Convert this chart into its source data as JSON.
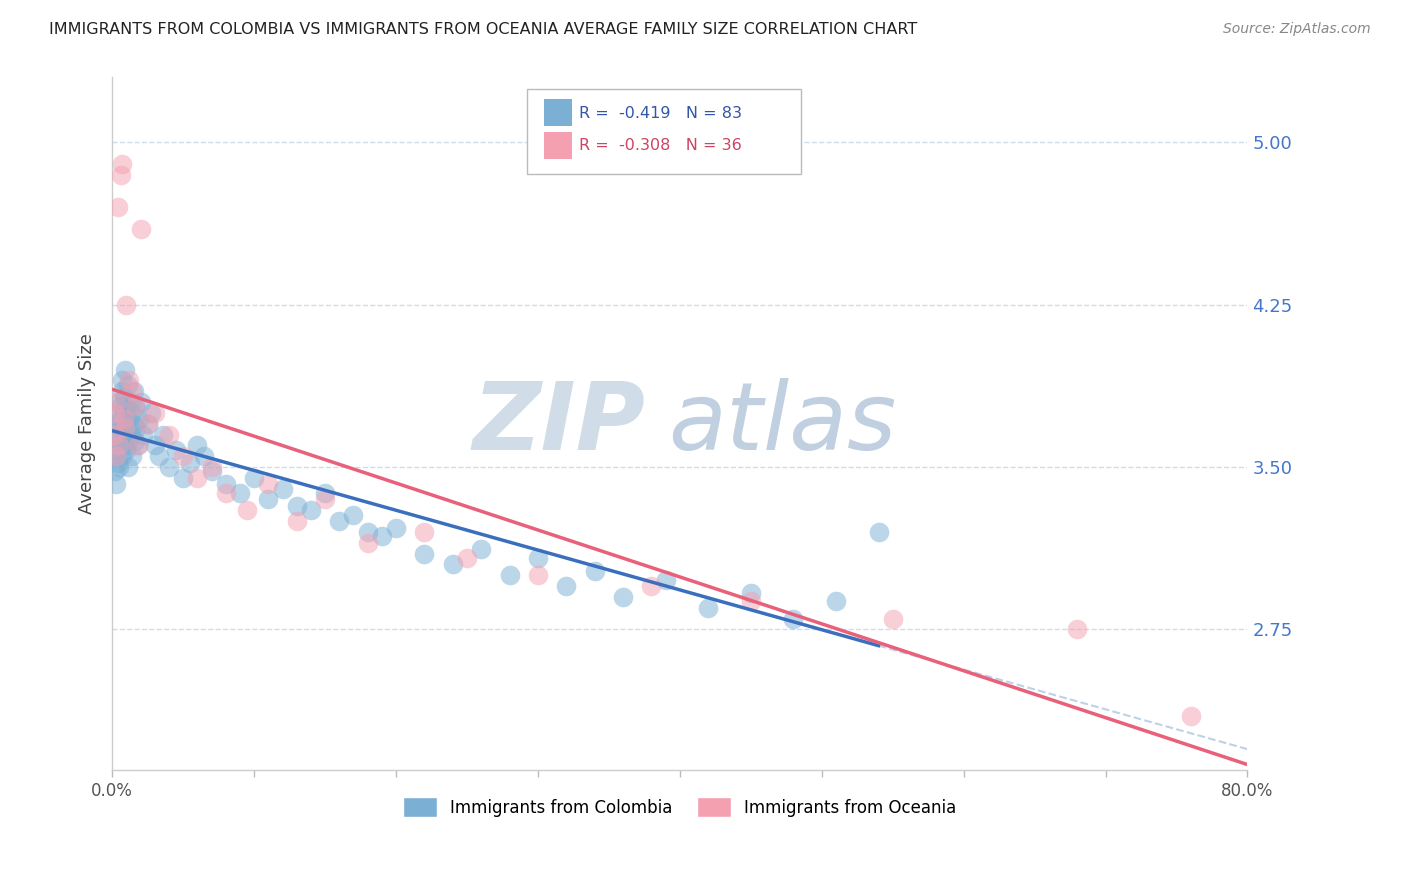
{
  "title": "IMMIGRANTS FROM COLOMBIA VS IMMIGRANTS FROM OCEANIA AVERAGE FAMILY SIZE CORRELATION CHART",
  "source": "Source: ZipAtlas.com",
  "ylabel": "Average Family Size",
  "xlim": [
    0.0,
    0.8
  ],
  "ylim": [
    2.1,
    5.3
  ],
  "yticks": [
    2.75,
    3.5,
    4.25,
    5.0
  ],
  "xticks": [
    0.0,
    0.1,
    0.2,
    0.3,
    0.4,
    0.5,
    0.6,
    0.7,
    0.8
  ],
  "xtick_labels": [
    "0.0%",
    "",
    "",
    "",
    "",
    "",
    "",
    "",
    "80.0%"
  ],
  "legend_label1": "Immigrants from Colombia",
  "legend_label2": "Immigrants from Oceania",
  "R1": -0.419,
  "N1": 83,
  "R2": -0.308,
  "N2": 36,
  "color1": "#7bafd4",
  "color2": "#f4a0b0",
  "trendline1_color": "#3a6fbe",
  "trendline2_color": "#e8607a",
  "trendline_ext_color": "#b8cce4",
  "watermark_zip_color": "#c5d5e8",
  "watermark_atlas_color": "#b8c8d8",
  "background_color": "#ffffff",
  "grid_color": "#ccddee",
  "colombia_x": [
    0.001,
    0.002,
    0.002,
    0.003,
    0.003,
    0.003,
    0.004,
    0.004,
    0.004,
    0.005,
    0.005,
    0.005,
    0.006,
    0.006,
    0.006,
    0.007,
    0.007,
    0.007,
    0.008,
    0.008,
    0.008,
    0.009,
    0.009,
    0.009,
    0.01,
    0.01,
    0.01,
    0.011,
    0.011,
    0.012,
    0.012,
    0.013,
    0.013,
    0.014,
    0.014,
    0.015,
    0.015,
    0.016,
    0.016,
    0.017,
    0.018,
    0.019,
    0.02,
    0.022,
    0.025,
    0.027,
    0.03,
    0.033,
    0.036,
    0.04,
    0.045,
    0.05,
    0.055,
    0.06,
    0.065,
    0.07,
    0.08,
    0.09,
    0.1,
    0.11,
    0.12,
    0.13,
    0.14,
    0.15,
    0.16,
    0.17,
    0.18,
    0.19,
    0.2,
    0.22,
    0.24,
    0.26,
    0.28,
    0.3,
    0.32,
    0.34,
    0.36,
    0.39,
    0.42,
    0.45,
    0.48,
    0.51,
    0.54
  ],
  "colombia_y": [
    3.55,
    3.62,
    3.48,
    3.7,
    3.58,
    3.42,
    3.75,
    3.65,
    3.52,
    3.8,
    3.6,
    3.5,
    3.68,
    3.72,
    3.78,
    3.85,
    3.55,
    3.9,
    3.65,
    3.75,
    3.82,
    3.6,
    3.7,
    3.95,
    3.58,
    3.68,
    3.78,
    3.88,
    3.5,
    3.72,
    3.62,
    3.8,
    3.65,
    3.75,
    3.55,
    3.85,
    3.7,
    3.62,
    3.78,
    3.68,
    3.6,
    3.72,
    3.8,
    3.65,
    3.7,
    3.75,
    3.6,
    3.55,
    3.65,
    3.5,
    3.58,
    3.45,
    3.52,
    3.6,
    3.55,
    3.48,
    3.42,
    3.38,
    3.45,
    3.35,
    3.4,
    3.32,
    3.3,
    3.38,
    3.25,
    3.28,
    3.2,
    3.18,
    3.22,
    3.1,
    3.05,
    3.12,
    3.0,
    3.08,
    2.95,
    3.02,
    2.9,
    2.98,
    2.85,
    2.92,
    2.8,
    2.88,
    3.2
  ],
  "oceania_x": [
    0.001,
    0.002,
    0.003,
    0.003,
    0.004,
    0.005,
    0.006,
    0.007,
    0.008,
    0.009,
    0.01,
    0.012,
    0.014,
    0.016,
    0.018,
    0.02,
    0.025,
    0.03,
    0.04,
    0.05,
    0.06,
    0.07,
    0.08,
    0.095,
    0.11,
    0.13,
    0.15,
    0.18,
    0.22,
    0.25,
    0.3,
    0.38,
    0.45,
    0.55,
    0.68,
    0.76
  ],
  "oceania_y": [
    3.65,
    3.75,
    3.55,
    3.8,
    4.7,
    3.6,
    4.85,
    4.9,
    3.72,
    3.68,
    4.25,
    3.9,
    3.85,
    3.78,
    3.6,
    4.6,
    3.7,
    3.75,
    3.65,
    3.55,
    3.45,
    3.5,
    3.38,
    3.3,
    3.42,
    3.25,
    3.35,
    3.15,
    3.2,
    3.08,
    3.0,
    2.95,
    2.88,
    2.8,
    2.75,
    2.35
  ]
}
